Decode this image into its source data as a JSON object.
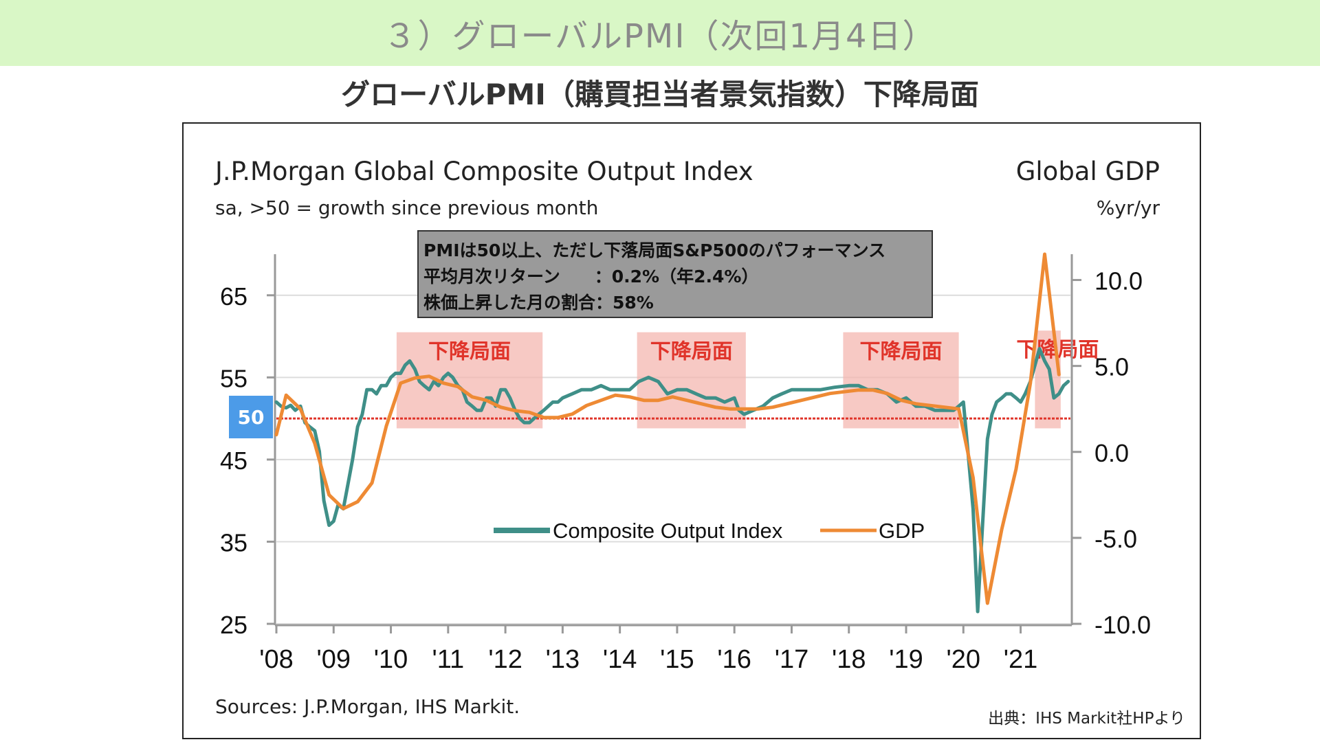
{
  "banner_title": "３）グローバルPMI（次回1月4日）",
  "slide_subtitle": "グローバルPMI（購買担当者景気指数）下降局面",
  "chart_title": "J.P.Morgan Global Composite Output Index",
  "chart_subtitle": "sa, >50 = growth since previous month",
  "right_title": "Global GDP",
  "right_subtitle": "%yr/yr",
  "info_lines": [
    "PMIは50以上、ただし下落局面S&P500のパフォーマンス",
    "平均月次リターン　　：0.2%（年2.4%）",
    "株価上昇した月の割合：58%"
  ],
  "badge_value": "50",
  "sources": "Sources: J.P.Morgan, IHS Markit.",
  "credit": "出典：IHS Markit社HPより",
  "chart_data": {
    "type": "line",
    "x_tick_labels": [
      "'08",
      "'09",
      "'10",
      "'11",
      "'12",
      "'13",
      "'14",
      "'15",
      "'16",
      "'17",
      "'18",
      "'19",
      "'20",
      "'21"
    ],
    "left_axis": {
      "ticks": [
        "65",
        "55",
        "45",
        "35",
        "25"
      ],
      "ylim": [
        25,
        70
      ]
    },
    "right_axis": {
      "ticks": [
        "10.0",
        "5.0",
        "0.0",
        "-5.0",
        "-10.0"
      ],
      "ylim": [
        -10,
        11.5
      ]
    },
    "reference_line": 50,
    "colors": {
      "pmi": "#3f8f88",
      "gdp": "#ee8a34",
      "ref": "#e0342a",
      "shade": "#f4b7b0",
      "shade_label": "#e0342a"
    },
    "shaded_periods": [
      {
        "label": "下降局面",
        "start": 2010.1,
        "end": 2012.65,
        "top": 60.5
      },
      {
        "label": "下降局面",
        "start": 2014.3,
        "end": 2016.2,
        "top": 60.5
      },
      {
        "label": "下降局面",
        "start": 2017.9,
        "end": 2019.92,
        "top": 60.5
      },
      {
        "label": "下降局面",
        "start": 2021.25,
        "end": 2021.7,
        "top": 60.7
      }
    ],
    "series": [
      {
        "name": "Composite Output Index",
        "axis": "left",
        "x": [
          2008.0,
          2008.08,
          2008.17,
          2008.25,
          2008.33,
          2008.42,
          2008.5,
          2008.58,
          2008.67,
          2008.75,
          2008.83,
          2008.92,
          2009.0,
          2009.08,
          2009.17,
          2009.25,
          2009.33,
          2009.42,
          2009.5,
          2009.58,
          2009.67,
          2009.75,
          2009.83,
          2009.92,
          2010.0,
          2010.08,
          2010.17,
          2010.25,
          2010.33,
          2010.42,
          2010.5,
          2010.58,
          2010.67,
          2010.75,
          2010.83,
          2010.92,
          2011.0,
          2011.08,
          2011.17,
          2011.25,
          2011.33,
          2011.42,
          2011.5,
          2011.58,
          2011.67,
          2011.75,
          2011.83,
          2011.92,
          2012.0,
          2012.08,
          2012.17,
          2012.25,
          2012.33,
          2012.42,
          2012.5,
          2012.58,
          2012.67,
          2012.75,
          2012.83,
          2012.92,
          2013.0,
          2013.17,
          2013.33,
          2013.5,
          2013.67,
          2013.83,
          2014.0,
          2014.17,
          2014.33,
          2014.5,
          2014.67,
          2014.83,
          2015.0,
          2015.17,
          2015.33,
          2015.5,
          2015.67,
          2015.83,
          2016.0,
          2016.08,
          2016.17,
          2016.33,
          2016.5,
          2016.67,
          2016.83,
          2017.0,
          2017.25,
          2017.5,
          2017.75,
          2018.0,
          2018.17,
          2018.33,
          2018.5,
          2018.67,
          2018.83,
          2019.0,
          2019.17,
          2019.33,
          2019.5,
          2019.67,
          2019.83,
          2019.92,
          2020.0,
          2020.08,
          2020.17,
          2020.25,
          2020.33,
          2020.42,
          2020.5,
          2020.58,
          2020.67,
          2020.75,
          2020.83,
          2020.92,
          2021.0,
          2021.08,
          2021.17,
          2021.25,
          2021.33,
          2021.42,
          2021.5,
          2021.58,
          2021.67,
          2021.75,
          2021.83
        ],
        "values": [
          52.0,
          51.5,
          51.3,
          51.6,
          51.0,
          51.5,
          49.5,
          49.0,
          48.5,
          46.0,
          40.0,
          37.0,
          37.5,
          39.5,
          39.0,
          42.0,
          45.0,
          49.0,
          50.5,
          53.5,
          53.5,
          53.0,
          54.0,
          54.0,
          55.0,
          55.5,
          55.5,
          56.5,
          57.0,
          56.0,
          54.5,
          54.0,
          53.5,
          54.5,
          54.0,
          55.0,
          55.5,
          55.0,
          54.0,
          53.5,
          52.0,
          51.5,
          51.0,
          51.0,
          52.5,
          52.5,
          51.5,
          53.5,
          53.5,
          52.5,
          51.0,
          50.0,
          49.5,
          49.5,
          50.0,
          50.5,
          51.0,
          51.5,
          52.0,
          52.0,
          52.5,
          53.0,
          53.5,
          53.5,
          54.0,
          53.5,
          53.5,
          53.5,
          54.5,
          55.0,
          54.5,
          53.0,
          53.5,
          53.5,
          53.0,
          52.5,
          52.5,
          52.0,
          52.5,
          51.0,
          50.5,
          51.0,
          51.5,
          52.5,
          53.0,
          53.5,
          53.5,
          53.5,
          53.8,
          54.0,
          54.0,
          53.5,
          53.5,
          53.0,
          52.0,
          52.5,
          51.5,
          51.5,
          51.0,
          51.0,
          51.0,
          51.5,
          52.0,
          46.0,
          39.0,
          26.5,
          36.5,
          47.5,
          50.5,
          52.0,
          52.5,
          53.0,
          53.0,
          52.5,
          52.0,
          53.0,
          54.5,
          56.5,
          58.5,
          57.0,
          56.0,
          52.5,
          53.0,
          54.0,
          54.5
        ]
      },
      {
        "name": "GDP",
        "axis": "right",
        "x": [
          2008.0,
          2008.17,
          2008.42,
          2008.67,
          2008.92,
          2009.17,
          2009.42,
          2009.67,
          2009.92,
          2010.17,
          2010.42,
          2010.67,
          2010.92,
          2011.17,
          2011.42,
          2011.67,
          2011.92,
          2012.17,
          2012.42,
          2012.67,
          2012.92,
          2013.17,
          2013.42,
          2013.67,
          2013.92,
          2014.17,
          2014.42,
          2014.67,
          2014.92,
          2015.17,
          2015.42,
          2015.67,
          2015.92,
          2016.17,
          2016.42,
          2016.67,
          2016.92,
          2017.17,
          2017.42,
          2017.67,
          2017.92,
          2018.17,
          2018.42,
          2018.67,
          2018.92,
          2019.17,
          2019.42,
          2019.67,
          2019.92,
          2020.17,
          2020.42,
          2020.67,
          2020.92,
          2021.17,
          2021.42,
          2021.67
        ],
        "values": [
          1.0,
          3.3,
          2.5,
          0.5,
          -2.5,
          -3.3,
          -2.9,
          -1.8,
          1.5,
          4.0,
          4.3,
          4.4,
          4.0,
          3.8,
          3.2,
          3.0,
          2.6,
          2.4,
          2.3,
          2.0,
          2.0,
          2.2,
          2.7,
          3.0,
          3.3,
          3.2,
          3.0,
          3.0,
          3.2,
          3.0,
          2.8,
          2.6,
          2.5,
          2.5,
          2.5,
          2.6,
          2.8,
          3.0,
          3.2,
          3.4,
          3.5,
          3.6,
          3.6,
          3.4,
          3.0,
          2.8,
          2.7,
          2.6,
          2.5,
          -1.5,
          -8.8,
          -4.5,
          -1.0,
          4.0,
          11.5,
          4.5
        ]
      }
    ]
  }
}
